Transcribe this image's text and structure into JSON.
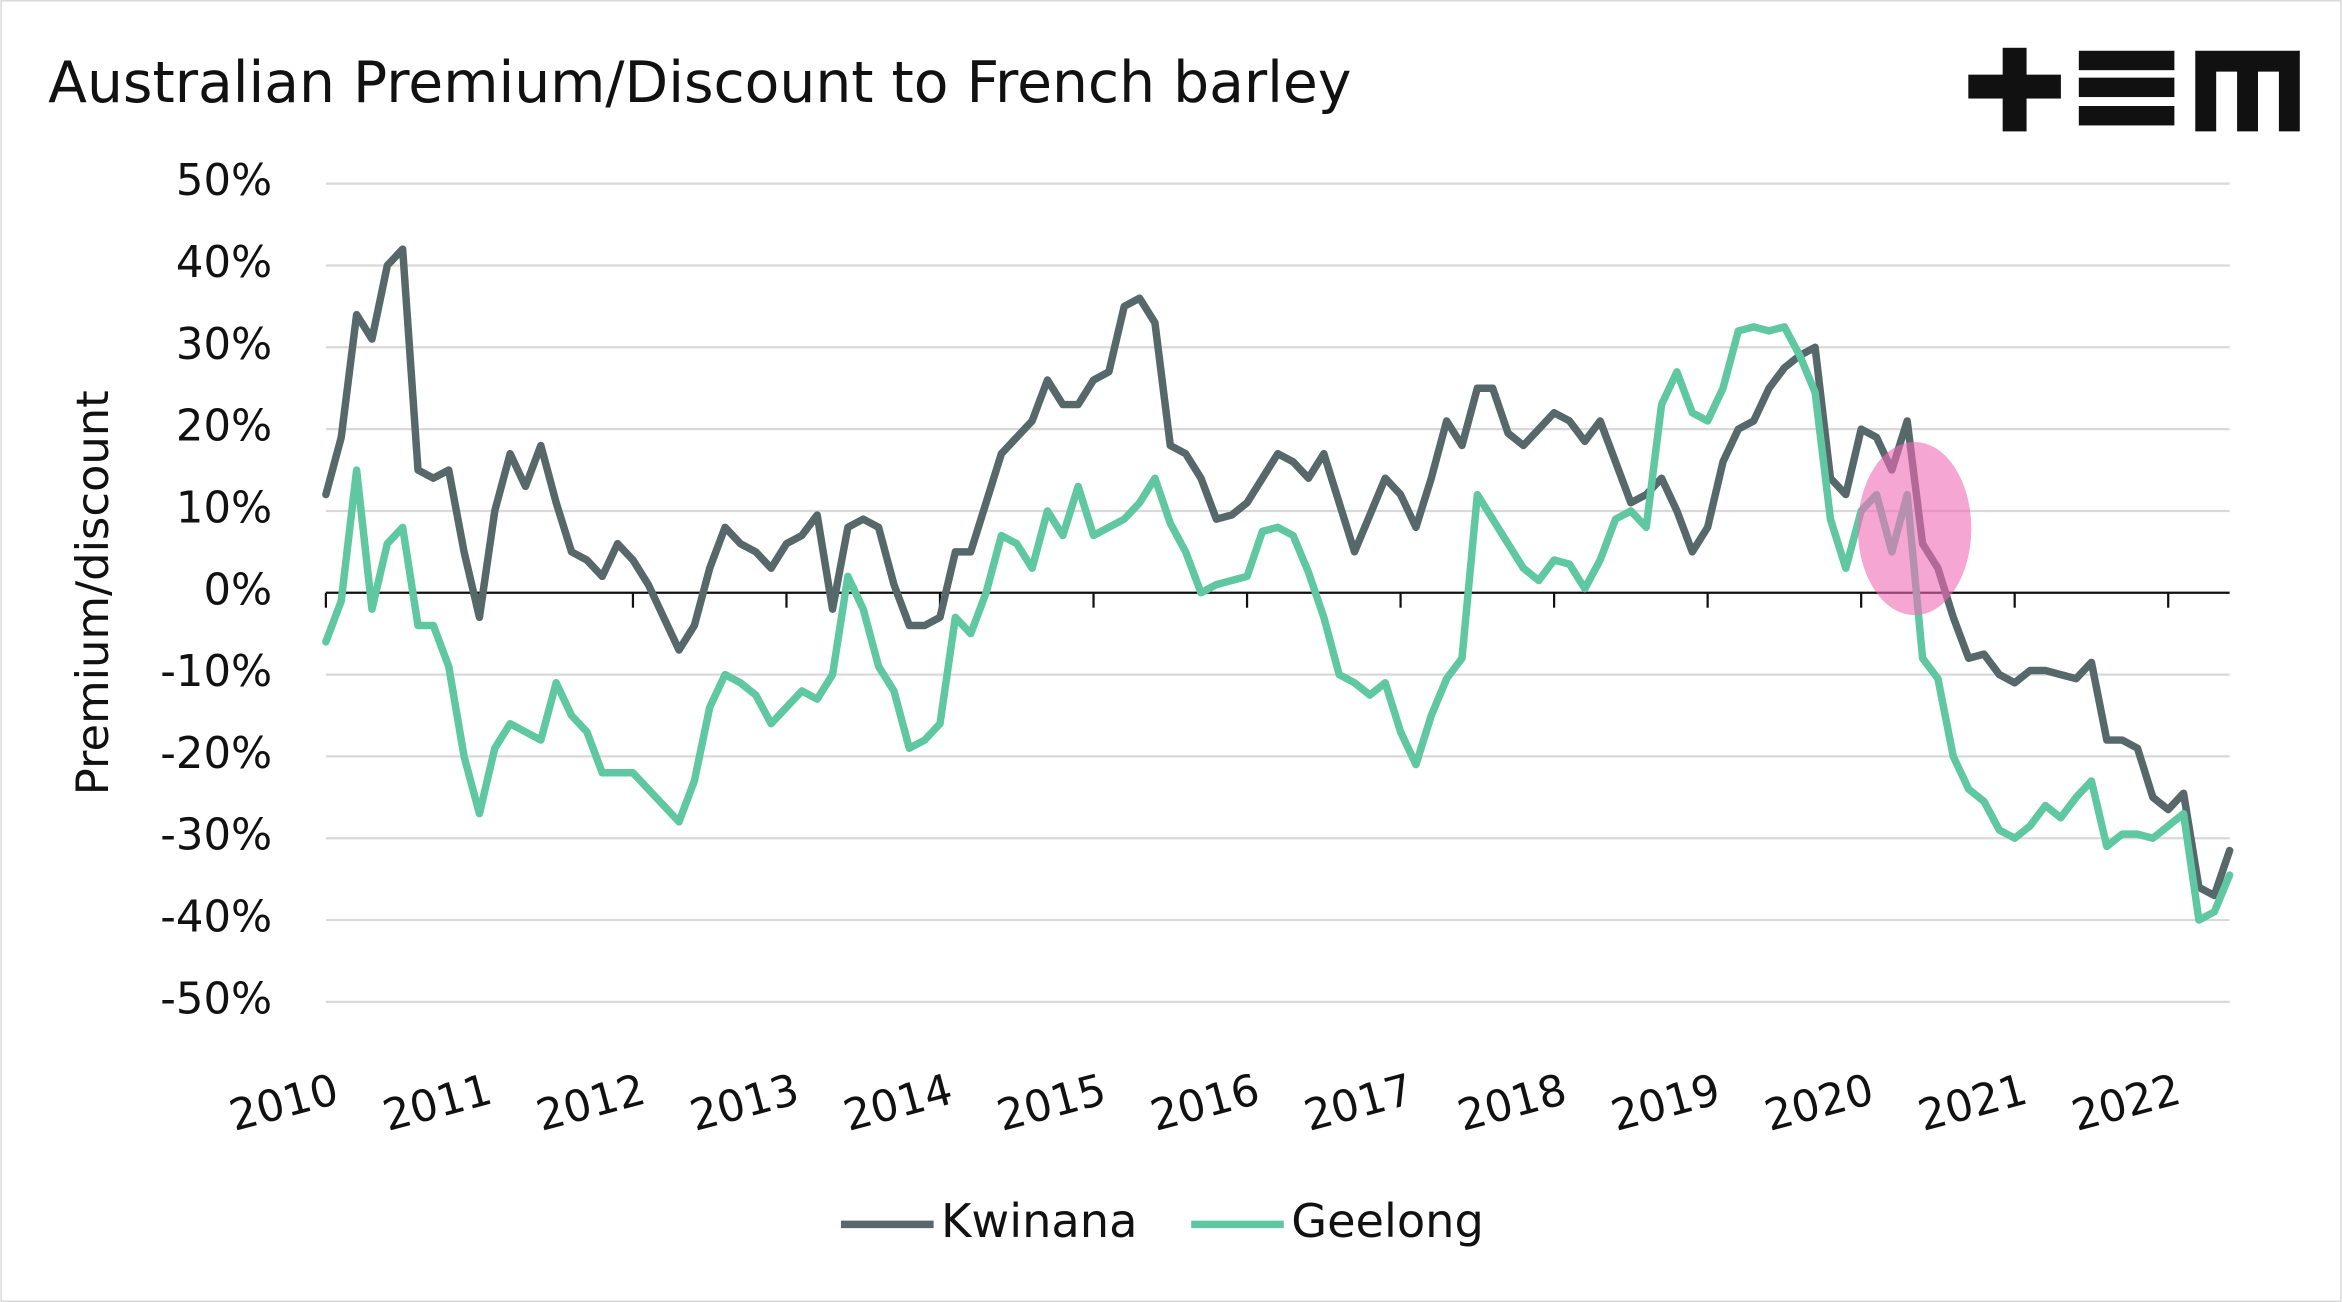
{
  "chart_data": {
    "type": "line",
    "title": "Australian Premium/Discount to French barley",
    "y_label": "Premium/discount",
    "x": [
      2010,
      2010.1,
      2010.2,
      2010.3,
      2010.4,
      2010.5,
      2010.6,
      2010.7,
      2010.8,
      2010.9,
      2011,
      2011.1,
      2011.2,
      2011.3,
      2011.4,
      2011.5,
      2011.6,
      2011.7,
      2011.8,
      2011.9,
      2012,
      2012.1,
      2012.2,
      2012.3,
      2012.4,
      2012.5,
      2012.6,
      2012.7,
      2012.8,
      2012.9,
      2013,
      2013.1,
      2013.2,
      2013.3,
      2013.4,
      2013.5,
      2013.6,
      2013.7,
      2013.8,
      2013.9,
      2014,
      2014.1,
      2014.2,
      2014.3,
      2014.4,
      2014.5,
      2014.6,
      2014.7,
      2014.8,
      2014.9,
      2015,
      2015.1,
      2015.2,
      2015.3,
      2015.4,
      2015.5,
      2015.6,
      2015.7,
      2015.8,
      2015.9,
      2016,
      2016.1,
      2016.2,
      2016.3,
      2016.4,
      2016.5,
      2016.6,
      2016.7,
      2016.8,
      2016.9,
      2017,
      2017.1,
      2017.2,
      2017.3,
      2017.4,
      2017.5,
      2017.6,
      2017.7,
      2017.8,
      2017.9,
      2018,
      2018.1,
      2018.2,
      2018.3,
      2018.4,
      2018.5,
      2018.6,
      2018.7,
      2018.8,
      2018.9,
      2019,
      2019.1,
      2019.2,
      2019.3,
      2019.4,
      2019.5,
      2019.6,
      2019.7,
      2019.8,
      2019.9,
      2020,
      2020.1,
      2020.2,
      2020.3,
      2020.4,
      2020.5,
      2020.6,
      2020.7,
      2020.8,
      2020.9,
      2021,
      2021.1,
      2021.2,
      2021.3,
      2021.4,
      2021.5,
      2021.6,
      2021.7,
      2021.8,
      2021.9,
      2022,
      2022.1,
      2022.2,
      2022.3,
      2022.4
    ],
    "series": [
      {
        "name": "Kwinana",
        "color": "#56686a",
        "values": [
          12,
          19,
          34,
          31,
          40,
          42,
          15,
          14,
          15,
          5,
          -3,
          10,
          17,
          13,
          18,
          11,
          5,
          4,
          2,
          6,
          4,
          1,
          -3,
          -7,
          -4,
          3,
          8,
          6,
          5,
          3,
          6,
          7,
          9.5,
          -2,
          8,
          9,
          8,
          1,
          -4,
          -4,
          -3,
          5,
          5,
          11,
          17,
          19,
          21,
          26,
          23,
          23,
          26,
          27,
          35,
          36,
          33,
          18,
          17,
          14,
          9,
          9.5,
          11,
          14,
          17,
          16,
          14,
          17,
          11,
          5,
          9.5,
          14,
          12,
          8,
          14,
          21,
          18,
          25,
          25,
          19.5,
          18,
          20,
          22,
          21,
          18.5,
          21,
          16,
          11,
          12,
          14,
          10,
          5,
          8,
          16,
          20,
          21,
          25,
          27.5,
          29,
          30,
          14,
          12,
          20,
          19,
          15,
          21,
          6,
          3,
          -3,
          -8,
          -7.5,
          -10,
          -11,
          -9.5,
          -9.5,
          -10,
          -10.5,
          -8.5,
          -18,
          -18,
          -19,
          -25,
          -26.5,
          -24.5,
          -36,
          -37,
          -31.5
        ]
      },
      {
        "name": "Geelong",
        "color": "#5fc7a2",
        "values": [
          -6,
          -1,
          15,
          -2,
          6,
          8,
          -4,
          -4,
          -9,
          -20,
          -27,
          -19,
          -16,
          -17,
          -18,
          -11,
          -15,
          -17,
          -22,
          -22,
          -22,
          -24,
          -26,
          -28,
          -23,
          -14,
          -10,
          -11,
          -12.5,
          -16,
          -14,
          -12,
          -13,
          -10,
          2,
          -2,
          -9,
          -12,
          -19,
          -18,
          -16,
          -3,
          -5,
          0,
          7,
          6,
          3,
          10,
          7,
          13,
          7,
          8,
          9,
          11,
          14,
          8.5,
          5,
          0,
          1,
          1.5,
          2,
          7.5,
          8,
          7,
          2.5,
          -3,
          -10,
          -11,
          -12.5,
          -11,
          -17,
          -21,
          -15,
          -10.5,
          -8,
          12,
          9,
          6,
          3,
          1.5,
          4,
          3.5,
          0.5,
          4,
          9,
          10,
          8,
          23,
          27,
          22,
          21,
          25,
          32,
          32.5,
          32,
          32.5,
          29,
          24.5,
          9,
          3,
          10,
          12,
          5,
          12,
          -8,
          -10.5,
          -20,
          -24,
          -25.5,
          -29,
          -30,
          -28.5,
          -26,
          -27.5,
          -25,
          -23,
          -31,
          -29.5,
          -29.5,
          -30,
          -28.5,
          -27,
          -40,
          -39,
          -34.5
        ]
      }
    ],
    "xlim": [
      2010,
      2022.4
    ],
    "xticks": [
      2010,
      2011,
      2012,
      2013,
      2014,
      2015,
      2016,
      2017,
      2018,
      2019,
      2020,
      2021,
      2022
    ],
    "ylim": [
      -50,
      50
    ],
    "yticks": [
      {
        "value": 50,
        "label": "50%"
      },
      {
        "value": 40,
        "label": "40%"
      },
      {
        "value": 30,
        "label": "30%"
      },
      {
        "value": 20,
        "label": "20%"
      },
      {
        "value": 10,
        "label": "10%"
      },
      {
        "value": 0,
        "label": "0%"
      },
      {
        "value": -10,
        "label": "-10%"
      },
      {
        "value": -20,
        "label": "-20%"
      },
      {
        "value": -30,
        "label": "-30%"
      },
      {
        "value": -40,
        "label": "-40%"
      },
      {
        "value": -50,
        "label": "-50%"
      }
    ],
    "grid": true,
    "legend": "bottom"
  }
}
